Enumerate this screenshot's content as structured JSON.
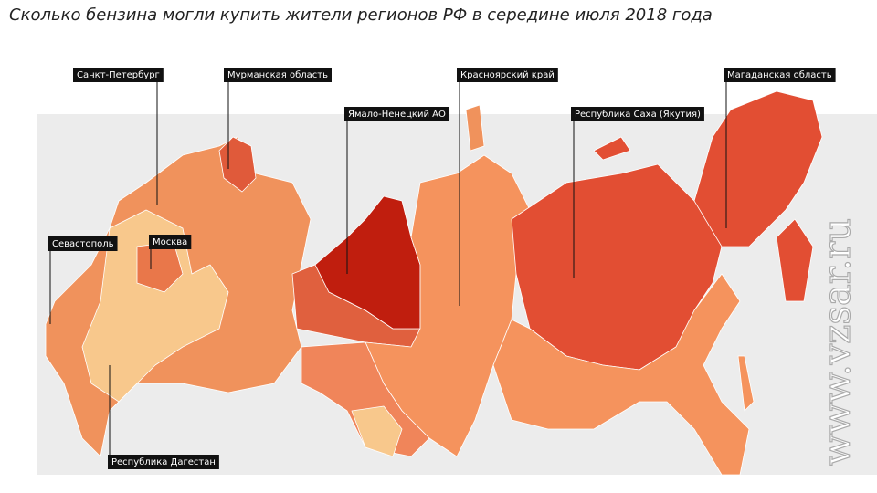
{
  "title": "Сколько бензина могли купить жители регионов РФ в середине июля 2018 года",
  "labels": [
    "Санкт-Петербург",
    "Мурманская область",
    "Красноярский край",
    "Магаданская область",
    "Ямало-Ненецкий АО",
    "Республика Саха (Якутия)",
    "Севастополь",
    "Москва",
    "Республика Дагестан"
  ],
  "watermark": "www.vzsar.ru"
}
